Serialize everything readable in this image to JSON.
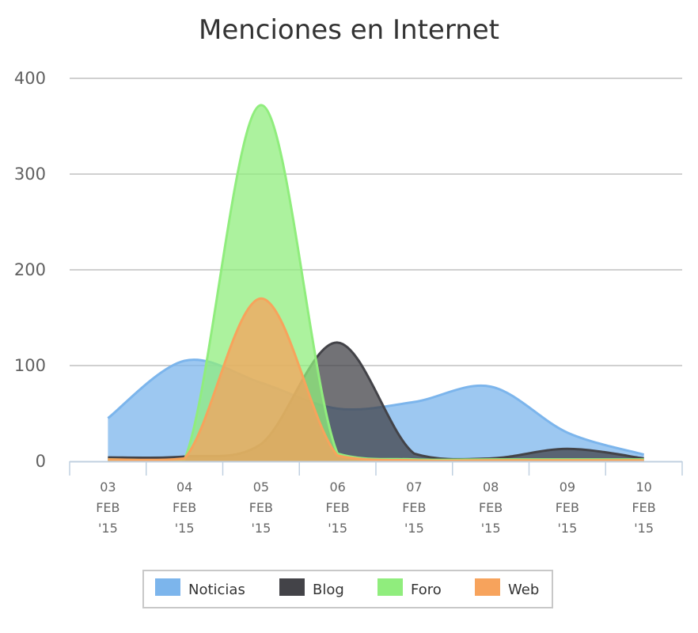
{
  "chart_data": {
    "type": "area",
    "title": "Menciones en Internet",
    "xlabel": "",
    "ylabel": "",
    "ylim": [
      0,
      400
    ],
    "yticks": [
      0,
      100,
      200,
      300,
      400
    ],
    "categories": [
      [
        "03",
        "FEB",
        "'15"
      ],
      [
        "04",
        "FEB",
        "'15"
      ],
      [
        "05",
        "FEB",
        "'15"
      ],
      [
        "06",
        "FEB",
        "'15"
      ],
      [
        "07",
        "FEB",
        "'15"
      ],
      [
        "08",
        "FEB",
        "'15"
      ],
      [
        "09",
        "FEB",
        "'15"
      ],
      [
        "10",
        "FEB",
        "'15"
      ]
    ],
    "grid": true,
    "legend_position": "bottom",
    "series": [
      {
        "name": "Noticias",
        "color": "#7cb5ec",
        "values": [
          45,
          105,
          82,
          55,
          62,
          78,
          30,
          7
        ]
      },
      {
        "name": "Blog",
        "color": "#434348",
        "values": [
          4,
          5,
          18,
          124,
          8,
          3,
          13,
          3
        ]
      },
      {
        "name": "Foro",
        "color": "#90ed7d",
        "values": [
          2,
          2,
          372,
          8,
          2,
          2,
          2,
          2
        ]
      },
      {
        "name": "Web",
        "color": "#f7a35c",
        "values": [
          2,
          3,
          170,
          6,
          1,
          1,
          1,
          1
        ]
      }
    ]
  }
}
